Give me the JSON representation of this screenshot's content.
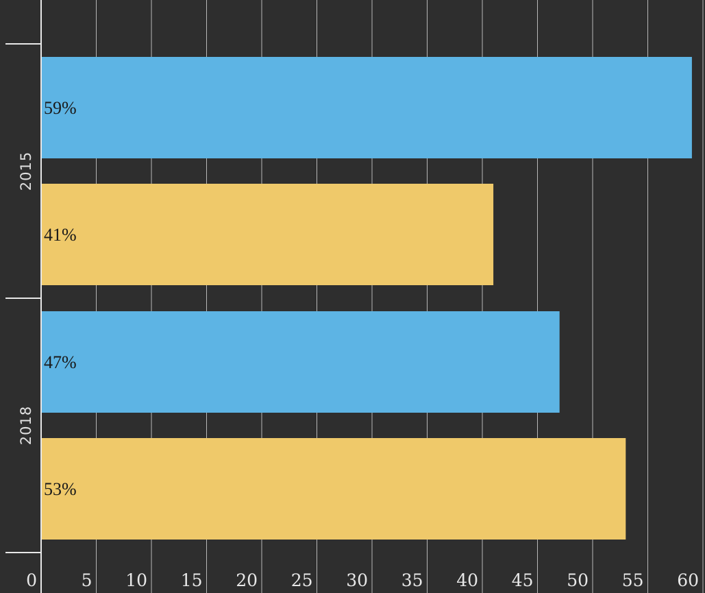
{
  "chart_data": {
    "type": "bar",
    "orientation": "horizontal",
    "categories": [
      "2015",
      "2018"
    ],
    "series": [
      {
        "values": [
          59,
          47
        ],
        "labels": [
          "59%",
          "47%"
        ],
        "color": "#5db4e4"
      },
      {
        "values": [
          41,
          53
        ],
        "labels": [
          "41%",
          "53%"
        ],
        "color": "#efc96a"
      }
    ],
    "xlim": [
      0,
      60
    ],
    "x_ticks": [
      0,
      5,
      10,
      15,
      20,
      25,
      30,
      35,
      40,
      45,
      50,
      55,
      60
    ],
    "grid": true,
    "background": "#2e2e2e",
    "grid_color": "#b8b8b8"
  }
}
